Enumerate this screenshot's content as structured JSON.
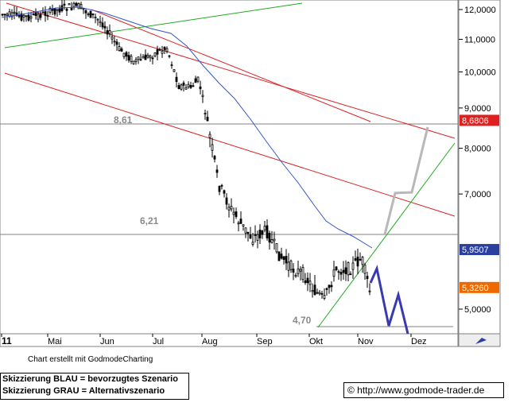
{
  "chart_data": {
    "type": "candlestick",
    "x_labels": [
      "11",
      "Mai",
      "Jun",
      "Jul",
      "Aug",
      "Sep",
      "Okt",
      "Nov",
      "Dez"
    ],
    "y_ticks": [
      "12,0000",
      "11,0000",
      "10,0000",
      "9,0000",
      "8,0000",
      "7,0000",
      "5,0000"
    ],
    "ylim": [
      4.35,
      12.4
    ],
    "level_labels": [
      {
        "text": "8,61",
        "value": 8.61
      },
      {
        "text": "6,21",
        "value": 6.21
      },
      {
        "text": "4,70",
        "value": 4.7
      }
    ],
    "price_markers": [
      {
        "text": "8,6806",
        "value": 8.6806,
        "color": "#e02020"
      },
      {
        "text": "5,9507",
        "value": 5.9507,
        "color": "#2a3fa0"
      },
      {
        "text": "5,3260",
        "value": 5.326,
        "color": "#ee6a00"
      }
    ],
    "credit": "Chart erstellt mit GodmodeCharting",
    "moving_average_color": "#3355cc",
    "trendline_red_color": "#dd2222",
    "trendline_green_color": "#22aa22",
    "scenario_blue_color": "#3a3ab0",
    "scenario_gray_color": "#b8b8b8"
  },
  "legend": {
    "line1": "Skizzierung BLAU = bevorzugtes Szenario",
    "line2": "Skizzierung GRAU = Alternativszenario"
  },
  "footer": {
    "copyright": "© http://www.godmode-trader.de"
  }
}
